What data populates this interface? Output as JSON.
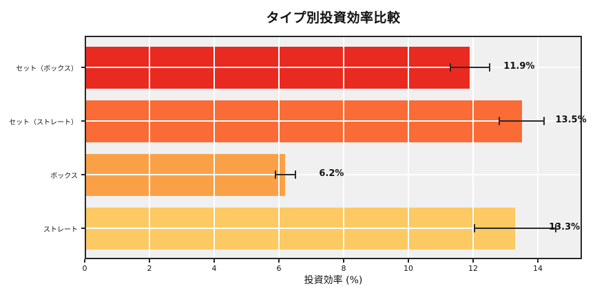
{
  "chart_data": {
    "type": "bar",
    "orientation": "horizontal",
    "title": "タイプ別投資効率比較",
    "xlabel": "投資効率 (%)",
    "ylabel": "",
    "categories": [
      "セット（ボックス）",
      "セット（ストレート）",
      "ボックス",
      "ストレート"
    ],
    "values": [
      11.9,
      13.5,
      6.2,
      13.3
    ],
    "errors": [
      0.6,
      0.7,
      0.3,
      1.25
    ],
    "value_labels": [
      "11.9%",
      "13.5%",
      "6.2%",
      "13.3%"
    ],
    "x_ticks": [
      0,
      2,
      4,
      6,
      8,
      10,
      12,
      14
    ],
    "x_tick_labels": [
      "0",
      "2",
      "4",
      "6",
      "8",
      "10",
      "12",
      "14"
    ],
    "xlim": [
      0,
      15.36
    ],
    "grid": true,
    "legend": false,
    "colors": {
      "bars": [
        "#e92a21",
        "#fa6b35",
        "#faa147",
        "#fcc963"
      ],
      "plot_background": "#f0f0f0",
      "grid": "#ffffff",
      "spine": "#262626",
      "error_bar": "#2a2a2a",
      "text": "#111111"
    }
  }
}
